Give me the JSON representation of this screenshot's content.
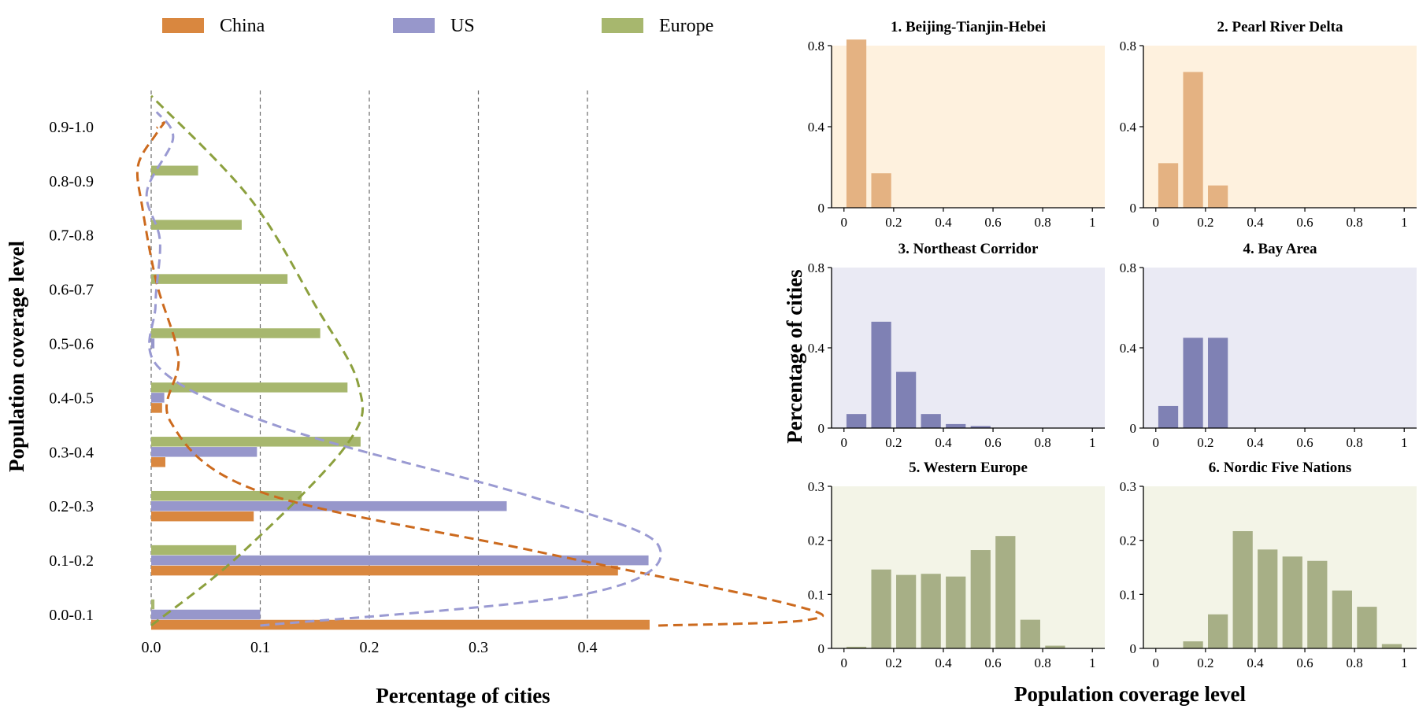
{
  "chart_data": [
    {
      "type": "bar",
      "orientation": "horizontal",
      "xlabel": "Percentage of cities",
      "ylabel": "Population coverage level",
      "categories": [
        "0.0-0.1",
        "0.1-0.2",
        "0.2-0.3",
        "0.3-0.4",
        "0.4-0.5",
        "0.5-0.6",
        "0.6-0.7",
        "0.7-0.8",
        "0.8-0.9",
        "0.9-1.0"
      ],
      "x_ticks": [
        "0.0",
        "0.1",
        "0.2",
        "0.3",
        "0.4"
      ],
      "xlim": [
        0,
        0.57
      ],
      "grid": "vertical dashed",
      "legend": "top",
      "series": [
        {
          "name": "China",
          "color": "#D9873F",
          "values": [
            0.457,
            0.428,
            0.094,
            0.013,
            0.01,
            0.0,
            0.0,
            0.0,
            0.0,
            0.0
          ],
          "curve_color": "#CC6A1E",
          "curve": [
            [
              0.0,
              0.95
            ],
            [
              0.0,
              0.93
            ],
            [
              0.0,
              0.91
            ],
            [
              0.0,
              0.89
            ],
            [
              0.0,
              0.85
            ],
            [
              0.0,
              0.8
            ],
            [
              0.0,
              0.75
            ],
            [
              0.0,
              0.7
            ]
          ]
        },
        {
          "name": "US",
          "color": "#9797CB",
          "values": [
            0.1,
            0.456,
            0.326,
            0.097,
            0.012,
            0.003,
            0.0,
            0.0,
            0.0,
            0.0
          ],
          "curve_color": "#9A9AD2"
        },
        {
          "name": "Europe",
          "color": "#A7B76E",
          "values": [
            0.003,
            0.078,
            0.138,
            0.192,
            0.18,
            0.155,
            0.125,
            0.083,
            0.043,
            0.0
          ],
          "curve_color": "#8CA03E"
        }
      ],
      "density_curves": {
        "China": [
          [
            0.465,
            0.0
          ],
          [
            0.6,
            0.01
          ],
          [
            0.585,
            0.04
          ],
          [
            0.35,
            0.14
          ],
          [
            0.1,
            0.25
          ],
          [
            0.018,
            0.38
          ],
          [
            0.025,
            0.5
          ],
          [
            0.005,
            0.64
          ],
          [
            -0.008,
            0.78
          ],
          [
            -0.012,
            0.86
          ],
          [
            0.005,
            0.92
          ],
          [
            0.012,
            0.94
          ],
          [
            0.005,
            0.93
          ]
        ],
        "US": [
          [
            0.1,
            0.0
          ],
          [
            0.4,
            0.06
          ],
          [
            0.465,
            0.15
          ],
          [
            0.35,
            0.24
          ],
          [
            0.12,
            0.37
          ],
          [
            0.008,
            0.48
          ],
          [
            0.004,
            0.6
          ],
          [
            0.008,
            0.72
          ],
          [
            -0.004,
            0.81
          ],
          [
            0.02,
            0.91
          ],
          [
            0.005,
            0.96
          ]
        ],
        "Europe": [
          [
            0.0,
            0.0
          ],
          [
            0.08,
            0.13
          ],
          [
            0.18,
            0.34
          ],
          [
            0.19,
            0.45
          ],
          [
            0.15,
            0.6
          ],
          [
            0.09,
            0.8
          ],
          [
            0.0,
            0.99
          ]
        ]
      }
    },
    {
      "type": "bar",
      "title": "1. Beijing-Tianjin-Hebei",
      "color": "#E4B282",
      "bg": "#FEF1DE",
      "x_ticks": [
        "0",
        "0.2",
        "0.4",
        "0.6",
        "0.8",
        "1"
      ],
      "y_ticks": [
        "0",
        "0.4",
        "0.8"
      ],
      "ylim": [
        0,
        0.8
      ],
      "bins": [
        0.05,
        0.15,
        0.25,
        0.35,
        0.45,
        0.55,
        0.65,
        0.75,
        0.85,
        0.95
      ],
      "values": [
        0.83,
        0.17,
        0,
        0,
        0,
        0,
        0,
        0,
        0,
        0
      ]
    },
    {
      "type": "bar",
      "title": "2. Pearl River Delta",
      "color": "#E4B282",
      "bg": "#FEF1DE",
      "x_ticks": [
        "0",
        "0.2",
        "0.4",
        "0.6",
        "0.8",
        "1"
      ],
      "y_ticks": [
        "0",
        "0.4",
        "0.8"
      ],
      "ylim": [
        0,
        0.8
      ],
      "bins": [
        0.05,
        0.15,
        0.25,
        0.35,
        0.45,
        0.55,
        0.65,
        0.75,
        0.85,
        0.95
      ],
      "values": [
        0.22,
        0.67,
        0.11,
        0,
        0,
        0,
        0,
        0,
        0,
        0
      ]
    },
    {
      "type": "bar",
      "title": "3. Northeast Corridor",
      "color": "#7F81B4",
      "bg": "#EAEAF4",
      "x_ticks": [
        "0",
        "0.2",
        "0.4",
        "0.6",
        "0.8",
        "1"
      ],
      "y_ticks": [
        "0",
        "0.4",
        "0.8"
      ],
      "ylim": [
        0,
        0.8
      ],
      "bins": [
        0.05,
        0.15,
        0.25,
        0.35,
        0.45,
        0.55,
        0.65,
        0.75,
        0.85,
        0.95
      ],
      "values": [
        0.07,
        0.53,
        0.28,
        0.07,
        0.02,
        0.01,
        0,
        0,
        0,
        0
      ]
    },
    {
      "type": "bar",
      "title": "4. Bay Area",
      "color": "#7F81B4",
      "bg": "#EAEAF4",
      "x_ticks": [
        "0",
        "0.2",
        "0.4",
        "0.6",
        "0.8",
        "1"
      ],
      "y_ticks": [
        "0",
        "0.4",
        "0.8"
      ],
      "ylim": [
        0,
        0.8
      ],
      "bins": [
        0.05,
        0.15,
        0.25,
        0.35,
        0.45,
        0.55,
        0.65,
        0.75,
        0.85,
        0.95
      ],
      "values": [
        0.11,
        0.45,
        0.45,
        0,
        0,
        0,
        0,
        0,
        0,
        0
      ]
    },
    {
      "type": "bar",
      "title": "5. Western Europe",
      "color": "#A7AF86",
      "bg": "#F3F4E7",
      "x_ticks": [
        "0",
        "0.2",
        "0.4",
        "0.6",
        "0.8",
        "1"
      ],
      "y_ticks": [
        "0",
        "0.1",
        "0.2",
        "0.3"
      ],
      "ylim": [
        0,
        0.3
      ],
      "bins": [
        0.05,
        0.15,
        0.25,
        0.35,
        0.45,
        0.55,
        0.65,
        0.75,
        0.85,
        0.95
      ],
      "values": [
        0.003,
        0.146,
        0.136,
        0.138,
        0.133,
        0.182,
        0.208,
        0.053,
        0.005,
        0
      ]
    },
    {
      "type": "bar",
      "title": "6. Nordic Five Nations",
      "color": "#A7AF86",
      "bg": "#F3F4E7",
      "x_ticks": [
        "0",
        "0.2",
        "0.4",
        "0.6",
        "0.8",
        "1"
      ],
      "y_ticks": [
        "0",
        "0.1",
        "0.2",
        "0.3"
      ],
      "ylim": [
        0,
        0.3
      ],
      "bins": [
        0.05,
        0.15,
        0.25,
        0.35,
        0.45,
        0.55,
        0.65,
        0.75,
        0.85,
        0.95
      ],
      "values": [
        0,
        0.013,
        0.063,
        0.217,
        0.183,
        0.17,
        0.162,
        0.107,
        0.077,
        0.008
      ]
    }
  ],
  "shared_labels": {
    "right_ylabel": "Percentage of cities",
    "right_xlabel": "Population coverage level"
  }
}
